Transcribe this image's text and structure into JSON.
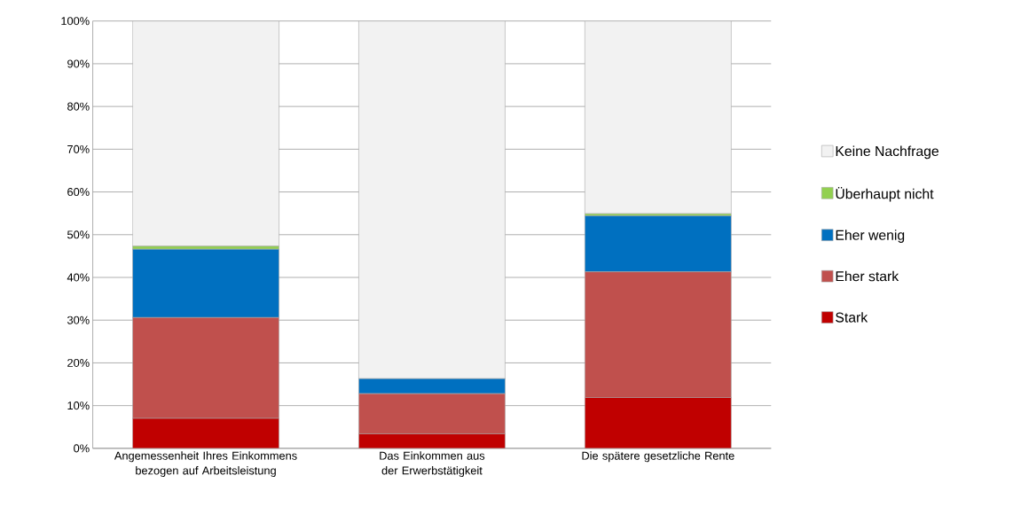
{
  "chart_data": {
    "type": "bar",
    "stacked": true,
    "categories": [
      "Angemessenheit Ihres Einkommens bezogen auf Arbeitsleistung",
      "Das Einkommen aus der Erwerbstätigkeit",
      "Die spätere gesetzliche Rente"
    ],
    "series": [
      {
        "name": "Stark",
        "color": "#c00000",
        "values": [
          7.0,
          3.4,
          11.9
        ]
      },
      {
        "name": "Eher stark",
        "color": "#c0504d",
        "values": [
          23.6,
          9.4,
          29.4
        ]
      },
      {
        "name": "Eher wenig",
        "color": "#0070c0",
        "values": [
          16.0,
          3.5,
          13.1
        ]
      },
      {
        "name": "Überhaupt nicht",
        "color": "#92d050",
        "values": [
          0.7,
          0.0,
          0.5
        ]
      },
      {
        "name": "Keine Nachfrage",
        "color": "#f2f2f2",
        "values": [
          52.7,
          83.7,
          45.1
        ]
      }
    ],
    "ylim": [
      0,
      100
    ],
    "yticks": [
      {
        "value": 0,
        "label": "0%"
      },
      {
        "value": 10,
        "label": "10%"
      },
      {
        "value": 20,
        "label": "20%"
      },
      {
        "value": 30,
        "label": "30%"
      },
      {
        "value": 40,
        "label": "40%"
      },
      {
        "value": 50,
        "label": "50%"
      },
      {
        "value": 60,
        "label": "60%"
      },
      {
        "value": 70,
        "label": "70%"
      },
      {
        "value": 80,
        "label": "80%"
      },
      {
        "value": 90,
        "label": "90%"
      },
      {
        "value": 100,
        "label": "100%"
      }
    ],
    "grid": "y",
    "legend": "right"
  }
}
